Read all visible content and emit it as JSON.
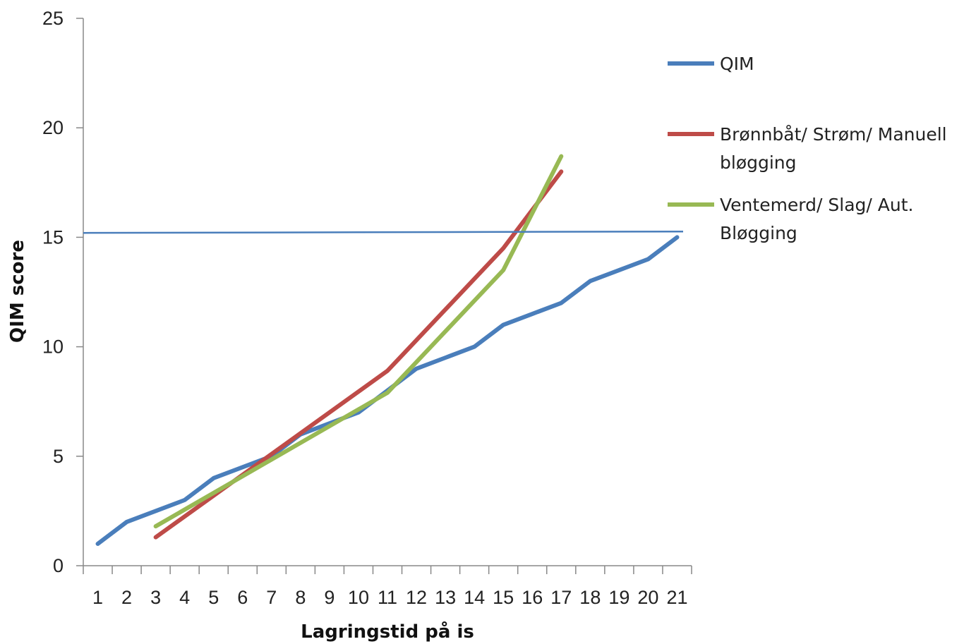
{
  "chart_data": {
    "type": "line",
    "title": "",
    "xlabel": "Lagringstid på is",
    "ylabel": "QIM score",
    "categories": [
      "1",
      "2",
      "3",
      "4",
      "5",
      "6",
      "7",
      "8",
      "9",
      "10",
      "11",
      "12",
      "13",
      "14",
      "15",
      "16",
      "17",
      "18",
      "19",
      "20",
      "21"
    ],
    "ylim": [
      0,
      25
    ],
    "yticks": [
      0,
      5,
      10,
      15,
      20,
      25
    ],
    "grid": false,
    "legend_position": "right",
    "series": [
      {
        "name": "QIM",
        "color": "#4a7ebb",
        "x": [
          1,
          2,
          3,
          4,
          5,
          6,
          7,
          8,
          9,
          10,
          11,
          12,
          13,
          14,
          15,
          16,
          17,
          18,
          19,
          20,
          21
        ],
        "values": [
          1,
          2,
          2.5,
          3,
          4,
          4.5,
          5,
          6,
          6.5,
          7,
          8,
          9,
          9.5,
          10,
          11,
          11.5,
          12,
          13,
          13.5,
          14,
          15
        ]
      },
      {
        "name": "Brønnbåt/ Strøm/ Manuell bløgging",
        "legend_lines": [
          "Brønnbåt/ Strøm/ Manuell",
          "bløgging"
        ],
        "color": "#be4b48",
        "x": [
          3,
          11,
          15,
          17
        ],
        "values": [
          1.3,
          8.9,
          14.5,
          18
        ]
      },
      {
        "name": "Ventemerd/ Slag/ Aut. Bløgging",
        "legend_lines": [
          "Ventemerd/ Slag/ Aut.",
          "Bløgging"
        ],
        "color": "#98b954",
        "x": [
          3,
          11,
          15,
          17
        ],
        "values": [
          1.8,
          7.9,
          13.5,
          18.7
        ]
      }
    ],
    "reference_line": {
      "y": 15.2,
      "color": "#4a7ebb"
    }
  }
}
